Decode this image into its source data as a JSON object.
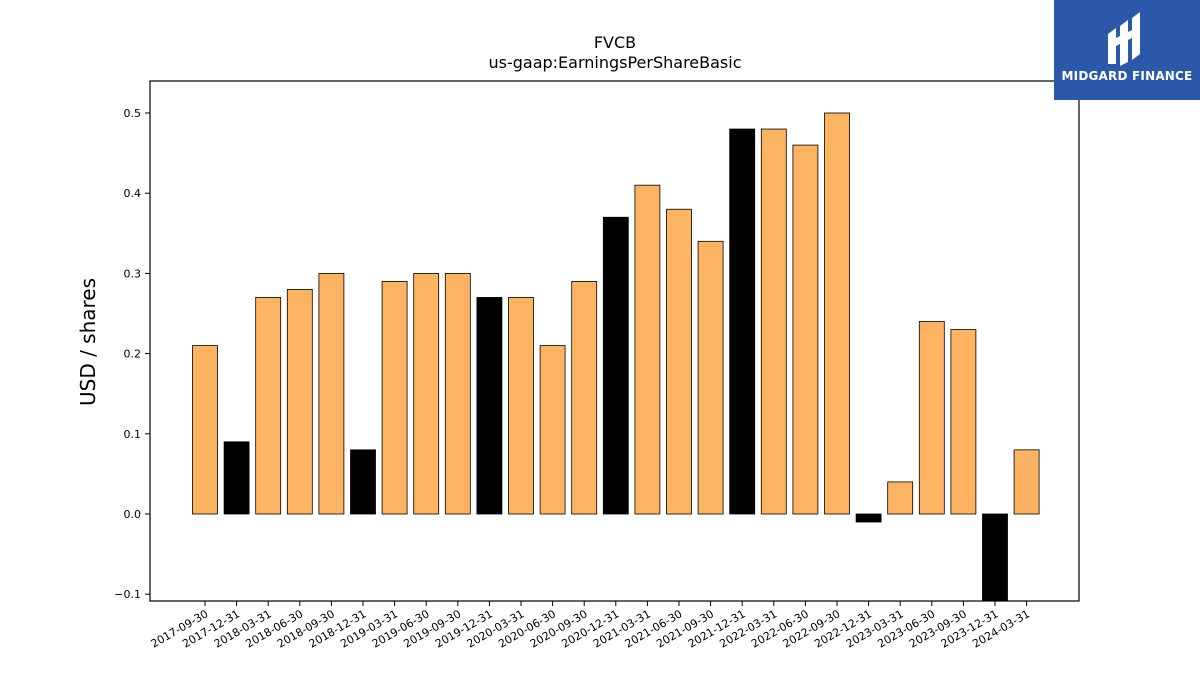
{
  "brand": {
    "name": "MIDGARD FINANCE",
    "bg_color": "#2b58a8",
    "text_color": "#ffffff"
  },
  "chart_data": {
    "type": "bar",
    "title": "FVCB",
    "subtitle": "us-gaap:EarningsPerShareBasic",
    "xlabel": "",
    "ylabel": "USD / shares",
    "ylim": [
      -0.11,
      0.54
    ],
    "yticks": [
      -0.1,
      0.0,
      0.1,
      0.2,
      0.3,
      0.4,
      0.5
    ],
    "grid": false,
    "categories": [
      "2017-09-30",
      "2017-12-31",
      "2018-03-31",
      "2018-06-30",
      "2018-09-30",
      "2018-12-31",
      "2019-03-31",
      "2019-06-30",
      "2019-09-30",
      "2019-12-31",
      "2020-03-31",
      "2020-06-30",
      "2020-09-30",
      "2020-12-31",
      "2021-03-31",
      "2021-06-30",
      "2021-09-30",
      "2021-12-31",
      "2022-03-31",
      "2022-06-30",
      "2022-09-30",
      "2022-12-31",
      "2023-03-31",
      "2023-06-30",
      "2023-09-30",
      "2023-12-31",
      "2024-03-31"
    ],
    "values": [
      0.21,
      0.09,
      0.27,
      0.28,
      0.3,
      0.08,
      0.29,
      0.3,
      0.3,
      0.27,
      0.27,
      0.21,
      0.29,
      0.37,
      0.41,
      0.38,
      0.34,
      0.48,
      0.48,
      0.46,
      0.5,
      -0.01,
      0.04,
      0.24,
      0.23,
      -0.11,
      0.08
    ],
    "colors": {
      "quarter": "#fdb462",
      "year_end": "#000000",
      "edge": "#000000"
    },
    "highlight": [
      false,
      true,
      false,
      false,
      false,
      true,
      false,
      false,
      false,
      true,
      false,
      false,
      false,
      true,
      false,
      false,
      false,
      true,
      false,
      false,
      false,
      true,
      false,
      false,
      false,
      true,
      false
    ]
  }
}
